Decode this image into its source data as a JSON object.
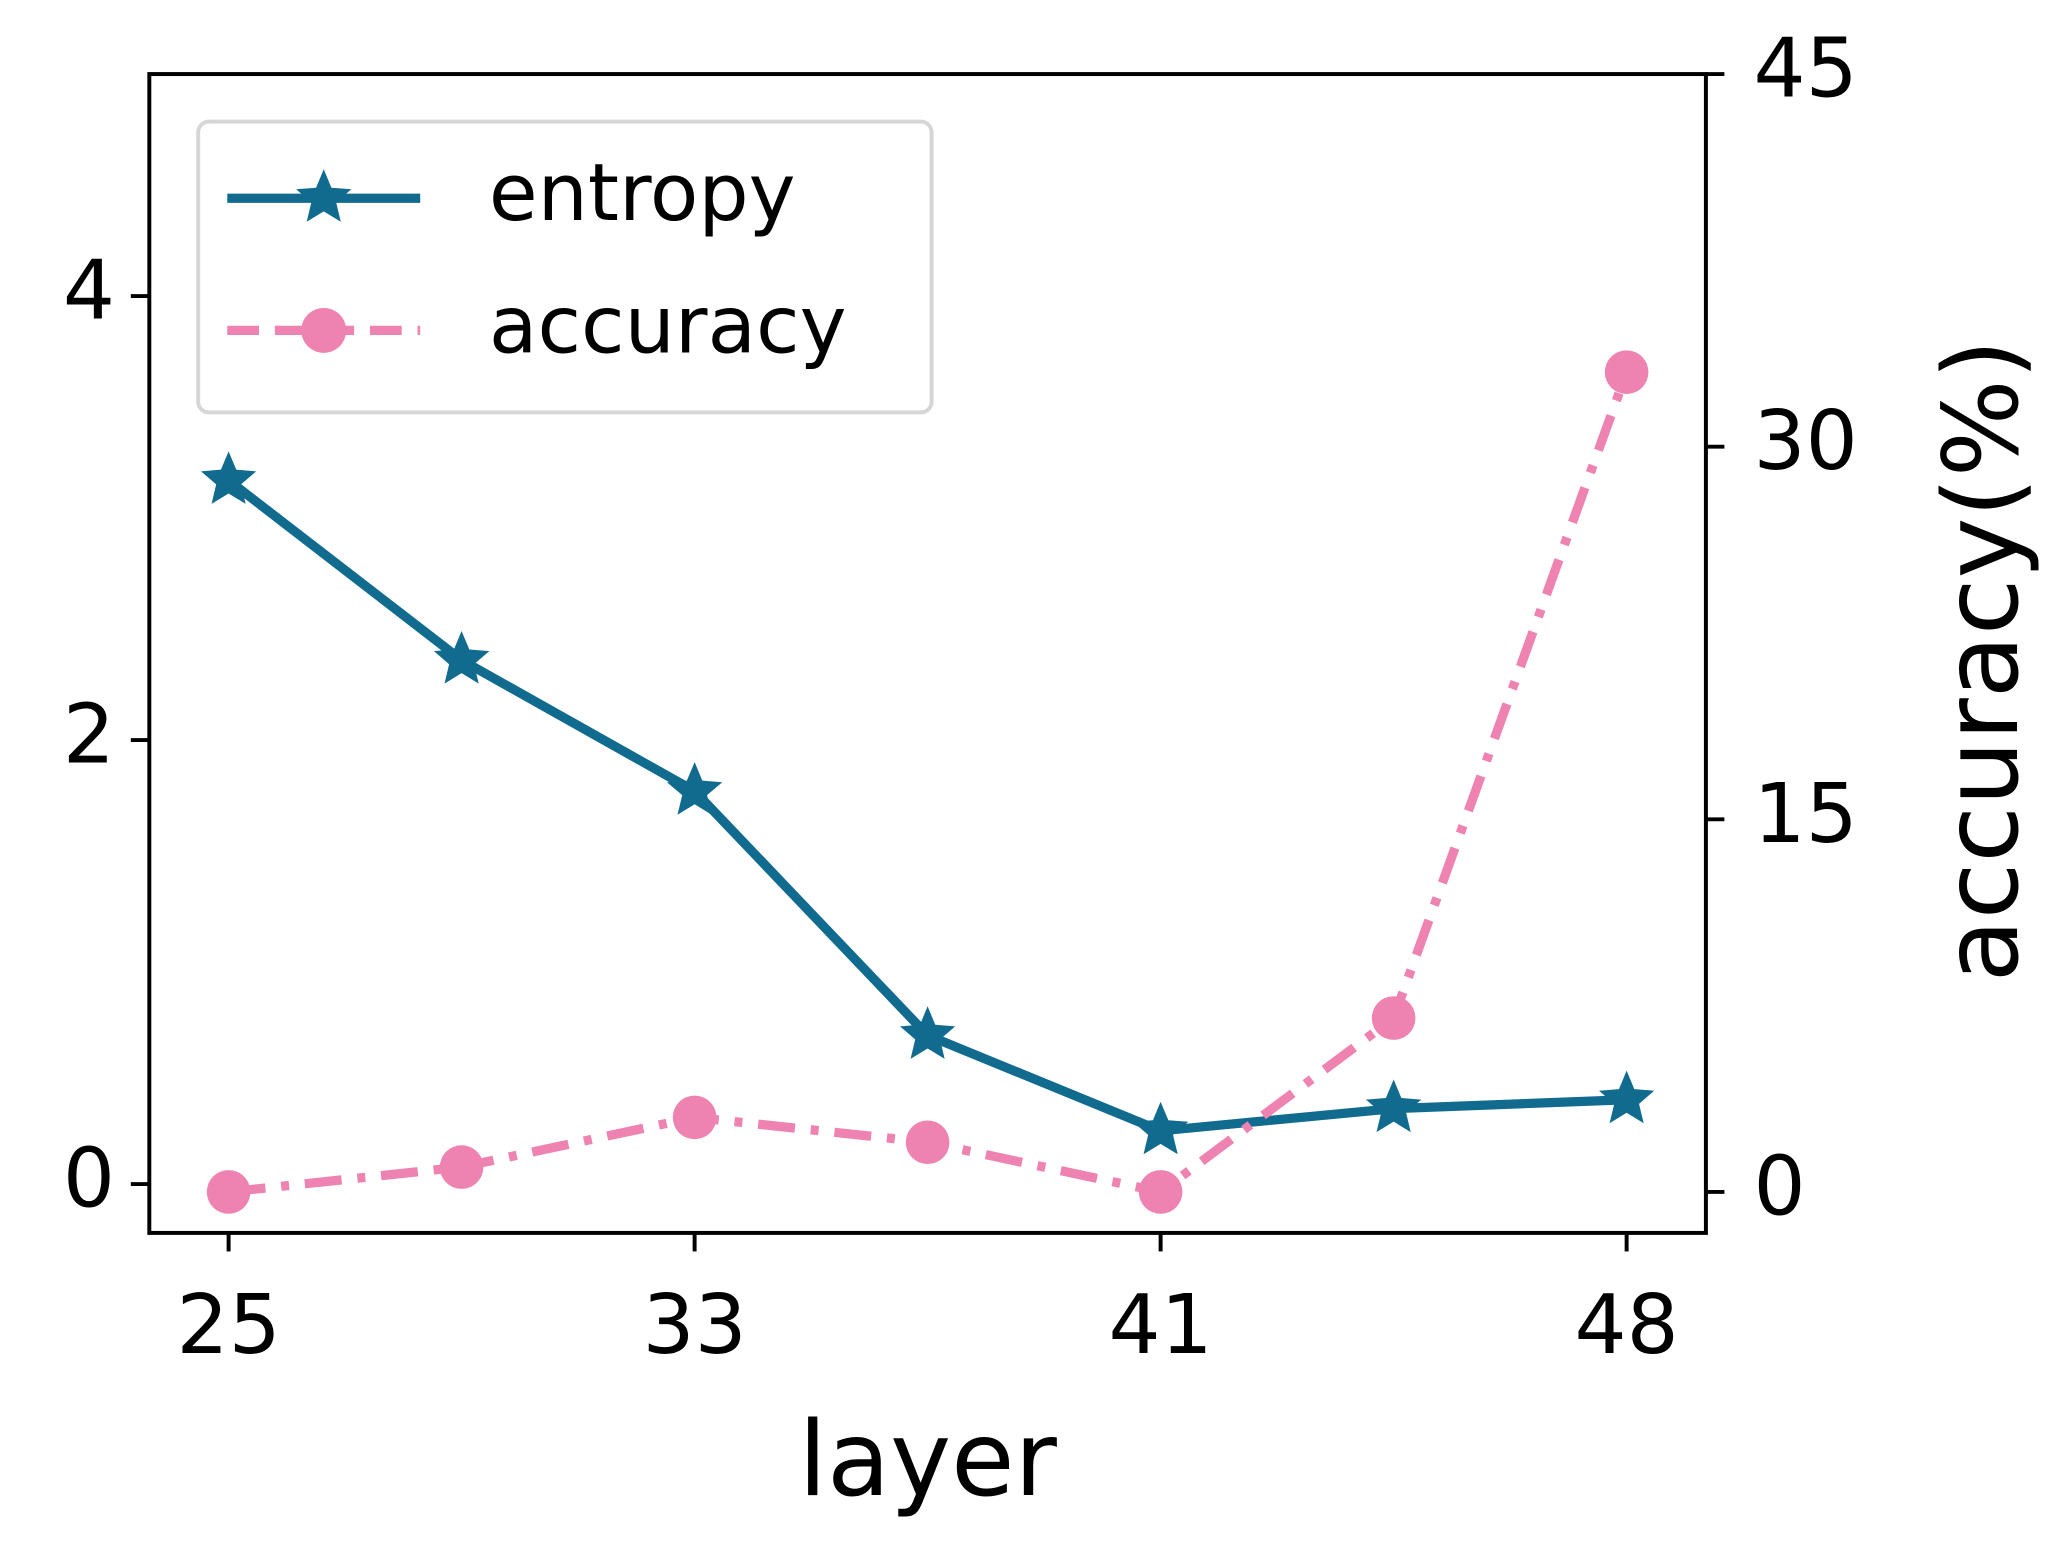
{
  "chart_data": {
    "type": "line",
    "x_label": "layer",
    "y2_label": "accuracy(%)",
    "categories": [
      "25",
      null,
      "33",
      null,
      "41",
      null,
      "48"
    ],
    "series": [
      {
        "name": "entropy",
        "color": "#106b8e",
        "marker": "star",
        "linestyle": "solid",
        "values": [
          3.17,
          2.36,
          1.77,
          0.67,
          0.24,
          0.34,
          0.38
        ]
      },
      {
        "name": "accuracy",
        "color": "#ee82b0",
        "marker": "circle",
        "linestyle": "dashdot",
        "axis": "y2",
        "values": [
          0,
          1,
          3,
          2,
          0,
          7,
          33
        ]
      }
    ],
    "ylim": [
      -0.22,
      5
    ],
    "yticks": [
      0,
      2,
      4
    ],
    "y2lim": [
      -1.65,
      45
    ],
    "y2ticks": [
      0,
      15,
      30,
      45
    ],
    "legend": "upper left"
  }
}
